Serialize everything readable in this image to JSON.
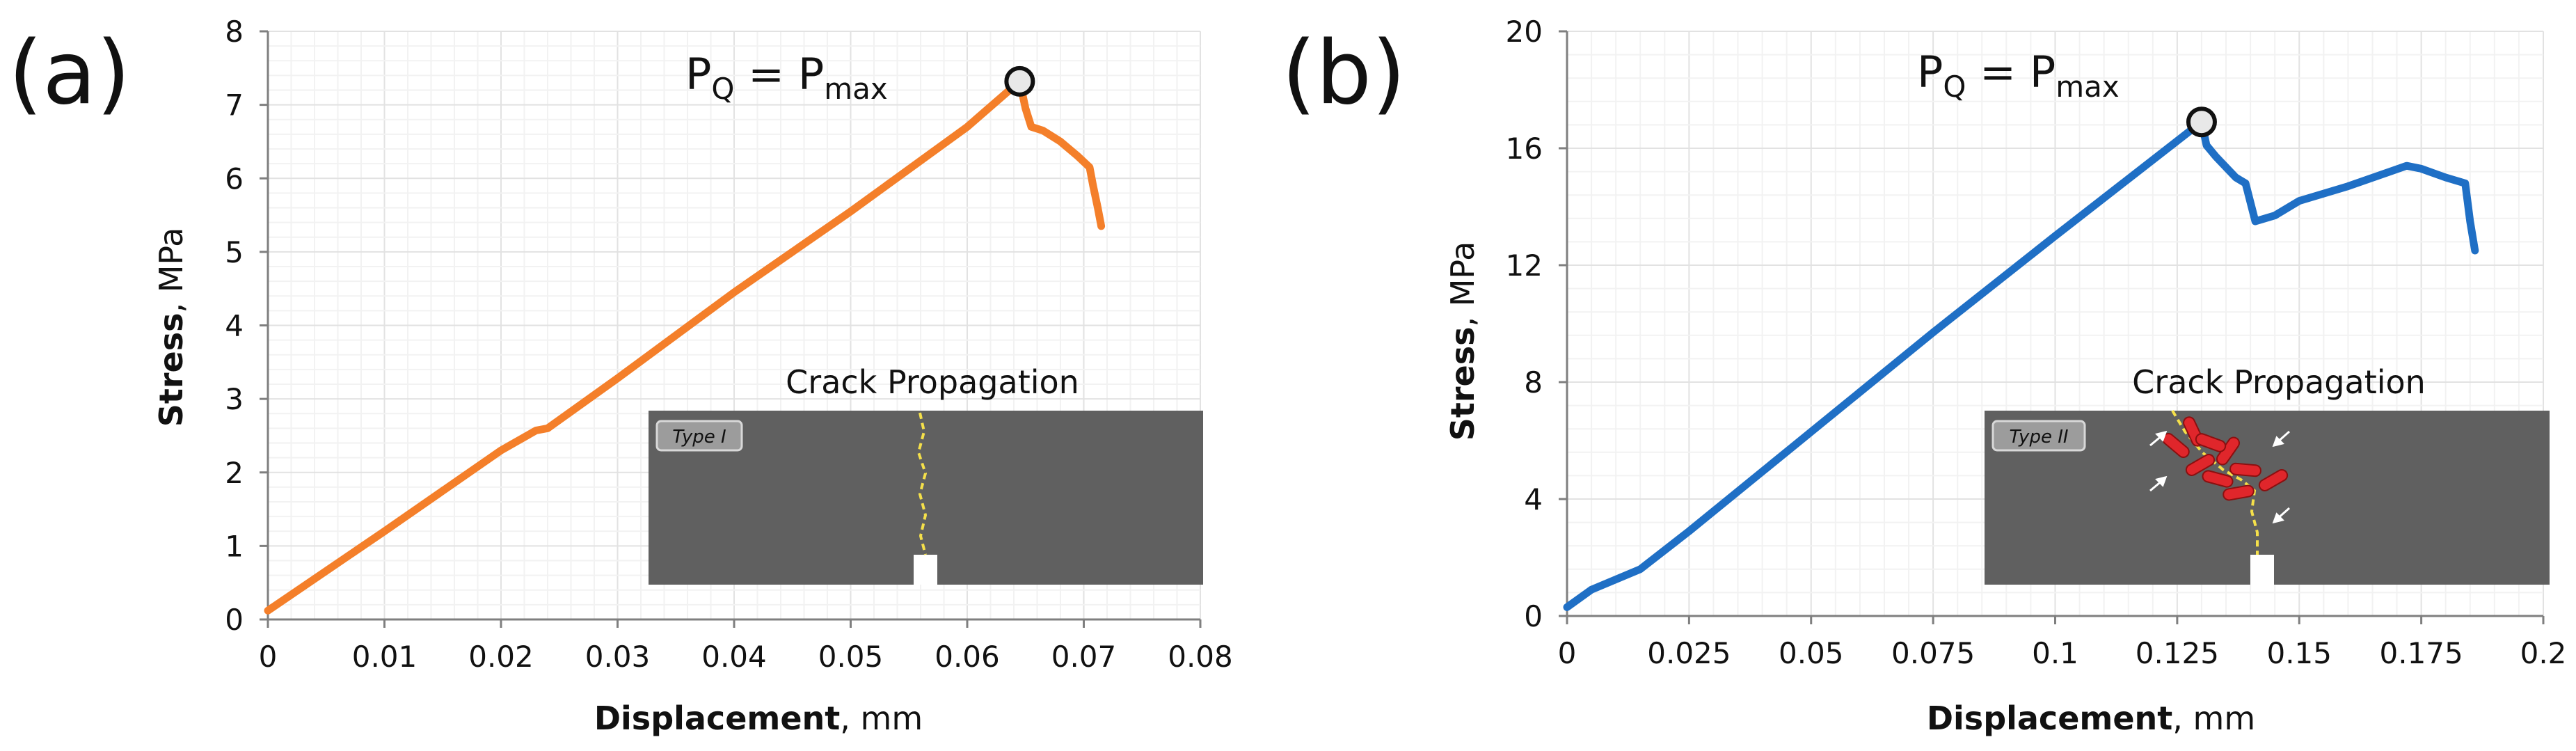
{
  "chart_data": [
    {
      "type": "line",
      "panel_label": "(a)",
      "annotation": "P_Q = P_max",
      "xlabel_bold": "Displacement",
      "xlabel_rest": ", mm",
      "ylabel_bold": "Stress",
      "ylabel_rest": ", MPa",
      "xlim": [
        0,
        0.08
      ],
      "ylim": [
        0,
        8
      ],
      "xticks": [
        0,
        0.01,
        0.02,
        0.03,
        0.04,
        0.05,
        0.06,
        0.07,
        0.08
      ],
      "xtick_labels": [
        "0",
        "0.01",
        "0.02",
        "0.03",
        "0.04",
        "0.05",
        "0.06",
        "0.07",
        "0.08"
      ],
      "yticks": [
        0,
        1,
        2,
        3,
        4,
        5,
        6,
        7,
        8
      ],
      "ytick_labels": [
        "0",
        "1",
        "2",
        "3",
        "4",
        "5",
        "6",
        "7",
        "8"
      ],
      "grid": true,
      "series": [
        {
          "color": "#F47F2A",
          "x": [
            0.0,
            0.01,
            0.02,
            0.023,
            0.024,
            0.03,
            0.04,
            0.05,
            0.06,
            0.0645,
            0.065,
            0.0655,
            0.0665,
            0.068,
            0.0695,
            0.0705,
            0.0708,
            0.0712,
            0.0715
          ],
          "y": [
            0.12,
            1.2,
            2.3,
            2.57,
            2.6,
            3.28,
            4.45,
            5.55,
            6.7,
            7.32,
            6.95,
            6.7,
            6.65,
            6.5,
            6.3,
            6.15,
            5.9,
            5.6,
            5.35
          ]
        }
      ],
      "marker": {
        "x": 0.0645,
        "y": 7.32
      },
      "inset": {
        "title": "Crack Propagation",
        "tag": "Type I"
      }
    },
    {
      "type": "line",
      "panel_label": "(b)",
      "annotation": "P_Q = P_max",
      "xlabel_bold": "Displacement",
      "xlabel_rest": ", mm",
      "ylabel_bold": "Stress",
      "ylabel_rest": ", MPa",
      "xlim": [
        0,
        0.2
      ],
      "ylim": [
        0,
        20
      ],
      "xticks": [
        0,
        0.025,
        0.05,
        0.075,
        0.1,
        0.125,
        0.15,
        0.175,
        0.2
      ],
      "xtick_labels": [
        "0",
        "0.025",
        "0.05",
        "0.075",
        "0.1",
        "0.125",
        "0.15",
        "0.175",
        "0.2"
      ],
      "yticks": [
        0,
        4,
        8,
        12,
        16,
        20
      ],
      "ytick_labels": [
        "0",
        "4",
        "8",
        "12",
        "16",
        "20"
      ],
      "grid": true,
      "series": [
        {
          "color": "#1F6FC5",
          "x": [
            0.0,
            0.005,
            0.015,
            0.025,
            0.05,
            0.075,
            0.1,
            0.13,
            0.131,
            0.133,
            0.137,
            0.139,
            0.141,
            0.145,
            0.15,
            0.16,
            0.172,
            0.175,
            0.18,
            0.184,
            0.185,
            0.186
          ],
          "y": [
            0.3,
            0.9,
            1.6,
            2.9,
            6.3,
            9.7,
            13.0,
            16.9,
            16.1,
            15.7,
            15.0,
            14.8,
            13.5,
            13.7,
            14.2,
            14.7,
            15.4,
            15.3,
            15.0,
            14.8,
            13.5,
            12.5
          ]
        }
      ],
      "marker": {
        "x": 0.13,
        "y": 16.9
      },
      "inset": {
        "title": "Crack Propagation",
        "tag": "Type II"
      }
    }
  ]
}
